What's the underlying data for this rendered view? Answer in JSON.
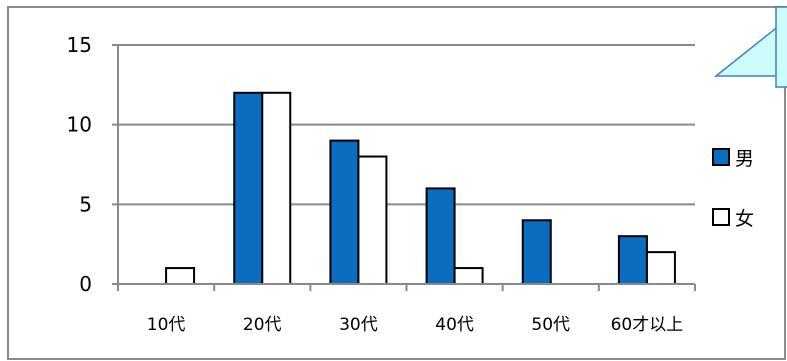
{
  "chart_data": {
    "type": "bar",
    "title": "",
    "xlabel": "",
    "ylabel": "",
    "categories": [
      "10代",
      "20代",
      "30代",
      "40代",
      "50代",
      "60才以上"
    ],
    "series": [
      {
        "name": "男",
        "color": "#0a6dbf",
        "values": [
          0,
          12,
          9,
          6,
          4,
          3
        ]
      },
      {
        "name": "女",
        "color": "#ffffff",
        "values": [
          1,
          12,
          8,
          1,
          0,
          2
        ]
      }
    ],
    "ylim": [
      0,
      15
    ],
    "yticks": [
      0,
      5,
      10,
      15
    ],
    "grid": true,
    "legend_position": "right"
  },
  "callout": {
    "fill": "#cdfcfc",
    "stroke": "#3f7fbf"
  }
}
